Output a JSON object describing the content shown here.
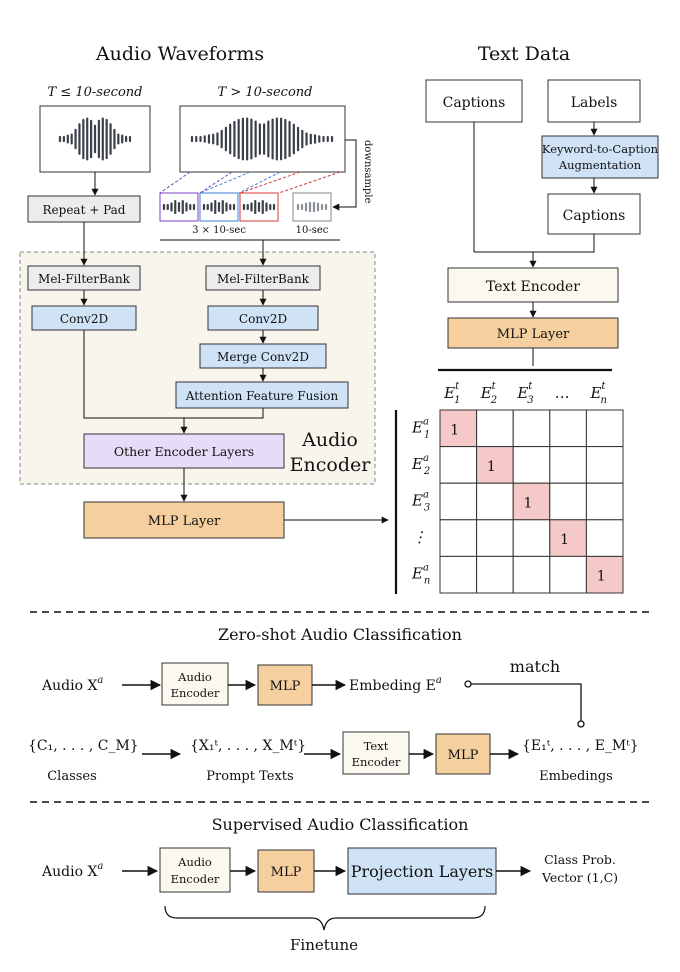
{
  "colors": {
    "gray_box": "#ececec",
    "blue_box": "#cfe2f6",
    "cream_box": "#fbf8ef",
    "orange_box": "#f6cf9f",
    "purple_box": "#e6dcf7",
    "encoder_bg": "#f8f5ec",
    "diag_cell": "#f6c9c9",
    "wave": "#3a3f4a"
  },
  "top": {
    "audio_title": "Audio Waveforms",
    "text_title": "Text Data",
    "short_cond": "T ≤ 10-second",
    "long_cond": "T > 10-second",
    "downsample": "downsample",
    "slices_label": "3 × 10-sec",
    "down_label": "10-sec"
  },
  "audio_branch": {
    "repeat_pad": "Repeat + Pad",
    "mel_left": "Mel-FilterBank",
    "mel_right": "Mel-FilterBank",
    "conv_left": "Conv2D",
    "conv_right": "Conv2D",
    "merge_conv": "Merge Conv2D",
    "aff": "Attention Feature Fusion",
    "other_layers": "Other Encoder Layers",
    "encoder_label_1": "Audio",
    "encoder_label_2": "Encoder",
    "mlp": "MLP Layer"
  },
  "text_branch": {
    "captions": "Captions",
    "labels": "Labels",
    "k2c_1": "Keyword-to-Caption",
    "k2c_2": "Augmentation",
    "captions2": "Captions",
    "text_encoder": "Text Encoder",
    "mlp": "MLP Layer"
  },
  "matrix": {
    "col_base": [
      "E",
      "E",
      "E",
      "…",
      "E"
    ],
    "col_sub": [
      "1",
      "2",
      "3",
      "",
      "n"
    ],
    "col_sup": "t",
    "row_base": [
      "E",
      "E",
      "E",
      "⋮",
      "E"
    ],
    "row_sub": [
      "1",
      "2",
      "3",
      "",
      "n"
    ],
    "row_sup": "a",
    "diag_value": "1"
  },
  "zero_shot": {
    "title": "Zero-shot Audio Classification",
    "audio_input": "Audio X",
    "audio_sup": "a",
    "audio_encoder_1": "Audio",
    "audio_encoder_2": "Encoder",
    "mlp1": "MLP",
    "embed_out": "Embeding E",
    "embed_sup": "a",
    "match": "match",
    "classes_set": "{C₁, . . . , C_M}",
    "classes_label": "Classes",
    "prompt_set": "{X₁ᵗ, . . . , X_Mᵗ}",
    "prompt_label": "Prompt Texts",
    "text_encoder_1": "Text",
    "text_encoder_2": "Encoder",
    "mlp2": "MLP",
    "embeds_set": "{E₁ᵗ, . . . , E_Mᵗ}",
    "embeds_label": "Embedings"
  },
  "supervised": {
    "title": "Supervised Audio Classification",
    "audio_input": "Audio X",
    "audio_sup": "a",
    "audio_encoder_1": "Audio",
    "audio_encoder_2": "Encoder",
    "mlp": "MLP",
    "projection": "Projection Layers",
    "out_1": "Class Prob.",
    "out_2": "Vector (1,C)",
    "finetune": "Finetune"
  }
}
